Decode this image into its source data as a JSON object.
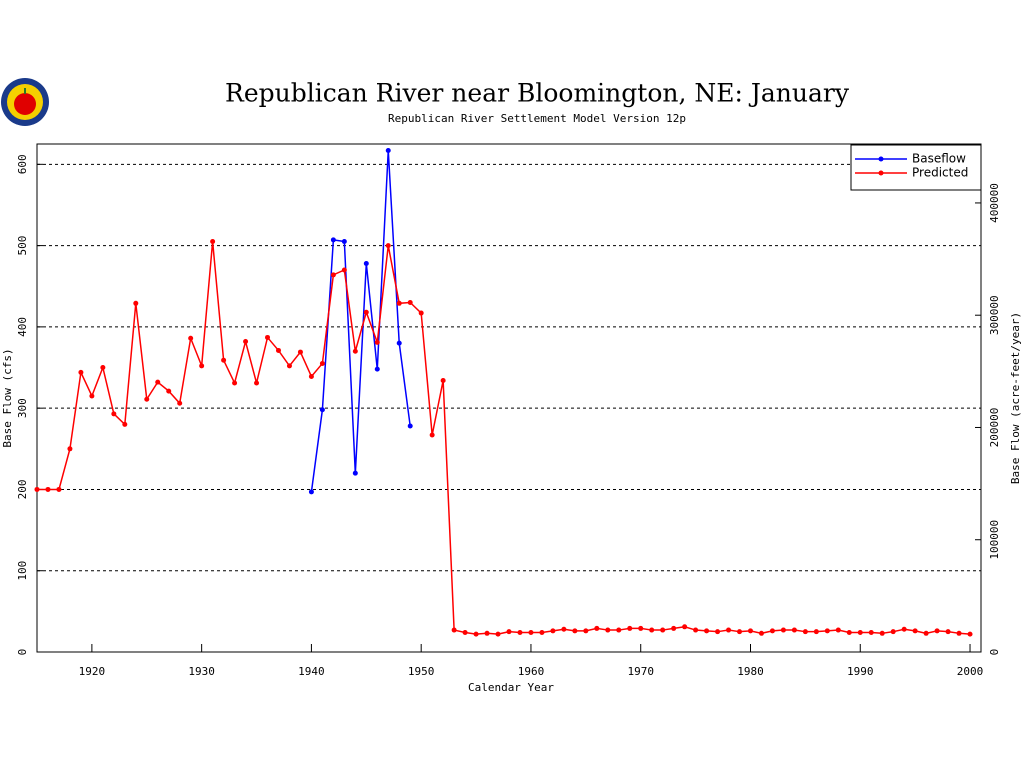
{
  "chart_data": {
    "type": "line",
    "title": "Republican River near Bloomington, NE: January",
    "subtitle": "Republican River Settlement Model Version 12p",
    "x_label": "Calendar Year",
    "y_label": "Base Flow (cfs)",
    "y2_label": "Base Flow (acre-feet/year)",
    "x": [
      1915,
      1916,
      1917,
      1918,
      1919,
      1920,
      1921,
      1922,
      1923,
      1924,
      1925,
      1926,
      1927,
      1928,
      1929,
      1930,
      1931,
      1932,
      1933,
      1934,
      1935,
      1936,
      1937,
      1938,
      1939,
      1940,
      1941,
      1942,
      1943,
      1944,
      1945,
      1946,
      1947,
      1948,
      1949,
      1950,
      1951,
      1952,
      1953,
      1954,
      1955,
      1956,
      1957,
      1958,
      1959,
      1960,
      1961,
      1962,
      1963,
      1964,
      1965,
      1966,
      1967,
      1968,
      1969,
      1970,
      1971,
      1972,
      1973,
      1974,
      1975,
      1976,
      1977,
      1978,
      1979,
      1980,
      1981,
      1982,
      1983,
      1984,
      1985,
      1986,
      1987,
      1988,
      1989,
      1990,
      1991,
      1992,
      1993,
      1994,
      1995,
      1996,
      1997,
      1998,
      1999,
      2000
    ],
    "series": [
      {
        "name": "Baseflow",
        "color": "#0000ff",
        "values": [
          null,
          null,
          null,
          null,
          null,
          null,
          null,
          null,
          null,
          null,
          null,
          null,
          null,
          null,
          null,
          null,
          null,
          null,
          null,
          null,
          null,
          null,
          null,
          null,
          null,
          197,
          298,
          507,
          505,
          220,
          478,
          348,
          617,
          380,
          278,
          null,
          null,
          null,
          null,
          null,
          null,
          null,
          null,
          null,
          null,
          null,
          null,
          null,
          null,
          null,
          null,
          null,
          null,
          null,
          null,
          null,
          null,
          null,
          null,
          null,
          null,
          null,
          null,
          null,
          null,
          null,
          null,
          null,
          null,
          null,
          null,
          null,
          null,
          null,
          null,
          null,
          null,
          null,
          null,
          null,
          null,
          null,
          null,
          null,
          null,
          null
        ]
      },
      {
        "name": "Predicted",
        "color": "#ff0000",
        "values": [
          200,
          200,
          200,
          250,
          344,
          315,
          350,
          293,
          280,
          429,
          311,
          332,
          321,
          306,
          386,
          352,
          505,
          359,
          331,
          382,
          331,
          387,
          371,
          352,
          369,
          339,
          355,
          464,
          470,
          370,
          418,
          381,
          500,
          429,
          430,
          417,
          267,
          334,
          27,
          24,
          22,
          23,
          22,
          25,
          24,
          24,
          24,
          26,
          28,
          26,
          26,
          29,
          27,
          27,
          29,
          29,
          27,
          27,
          29,
          31,
          27,
          26,
          25,
          27,
          25,
          26,
          23,
          26,
          27,
          27,
          25,
          25,
          26,
          27,
          24,
          24,
          24,
          23,
          25,
          28,
          26,
          23,
          26,
          25,
          23,
          22
        ]
      }
    ],
    "xlim": [
      1915,
      2001
    ],
    "xticks": [
      1920,
      1930,
      1940,
      1950,
      1960,
      1970,
      1980,
      1990,
      2000
    ],
    "ylim": [
      0,
      625
    ],
    "yticks": [
      0,
      100,
      200,
      300,
      400,
      500,
      600
    ],
    "y2lim": [
      0,
      452500
    ],
    "y2ticks": [
      0,
      100000,
      200000,
      300000,
      400000
    ],
    "grid": true,
    "legend": "upper right"
  }
}
